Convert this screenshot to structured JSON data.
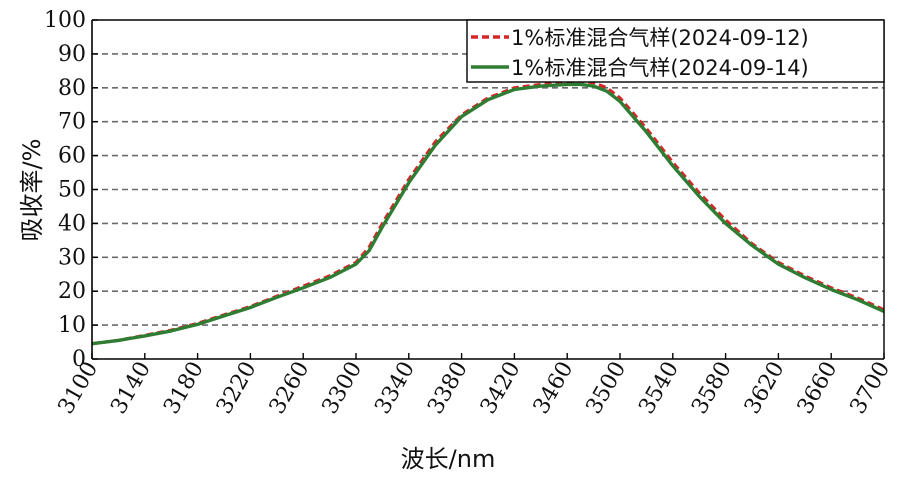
{
  "chart_data": {
    "type": "line",
    "title": "",
    "xlabel": "波长/nm",
    "ylabel": "吸收率/%",
    "xlim": [
      3100,
      3700
    ],
    "ylim": [
      0,
      100
    ],
    "x_ticks": [
      3100,
      3140,
      3180,
      3220,
      3260,
      3300,
      3340,
      3380,
      3420,
      3460,
      3500,
      3540,
      3580,
      3620,
      3660,
      3700
    ],
    "y_ticks": [
      0,
      10,
      20,
      30,
      40,
      50,
      60,
      70,
      80,
      90,
      100
    ],
    "grid": "horizontal dashed",
    "legend_position": "top-right",
    "series": [
      {
        "name": "1%标准混合气样(2024-09-12)",
        "color": "#d62728",
        "style": "dashed",
        "x": [
          3100,
          3120,
          3140,
          3160,
          3180,
          3200,
          3220,
          3240,
          3260,
          3280,
          3300,
          3310,
          3320,
          3340,
          3360,
          3380,
          3400,
          3420,
          3440,
          3460,
          3470,
          3480,
          3490,
          3500,
          3520,
          3540,
          3560,
          3580,
          3600,
          3620,
          3640,
          3660,
          3680,
          3700
        ],
        "y": [
          4.5,
          5.5,
          7.0,
          8.5,
          10.5,
          13.0,
          15.5,
          18.5,
          21.5,
          24.5,
          28.5,
          33,
          40,
          53,
          64,
          72,
          77,
          80,
          81,
          81.5,
          82,
          81.5,
          80,
          77,
          68,
          58,
          49,
          41,
          34,
          28.5,
          24.5,
          21,
          18,
          14.5
        ]
      },
      {
        "name": "1%标准混合气样(2024-09-14)",
        "color": "#2e7d32",
        "style": "solid",
        "x": [
          3100,
          3120,
          3140,
          3160,
          3180,
          3200,
          3220,
          3240,
          3260,
          3280,
          3300,
          3310,
          3320,
          3340,
          3360,
          3380,
          3400,
          3420,
          3440,
          3460,
          3470,
          3480,
          3490,
          3500,
          3520,
          3540,
          3560,
          3580,
          3600,
          3620,
          3640,
          3660,
          3680,
          3700
        ],
        "y": [
          4.5,
          5.5,
          6.8,
          8.3,
          10.2,
          12.7,
          15.2,
          18.2,
          21.0,
          24.0,
          28.0,
          32,
          39,
          52,
          63,
          71.5,
          76.5,
          79.5,
          80.5,
          81,
          81,
          80.5,
          79,
          76,
          67,
          57,
          48,
          40,
          33.5,
          28,
          24,
          20.5,
          17.5,
          14
        ]
      }
    ]
  }
}
